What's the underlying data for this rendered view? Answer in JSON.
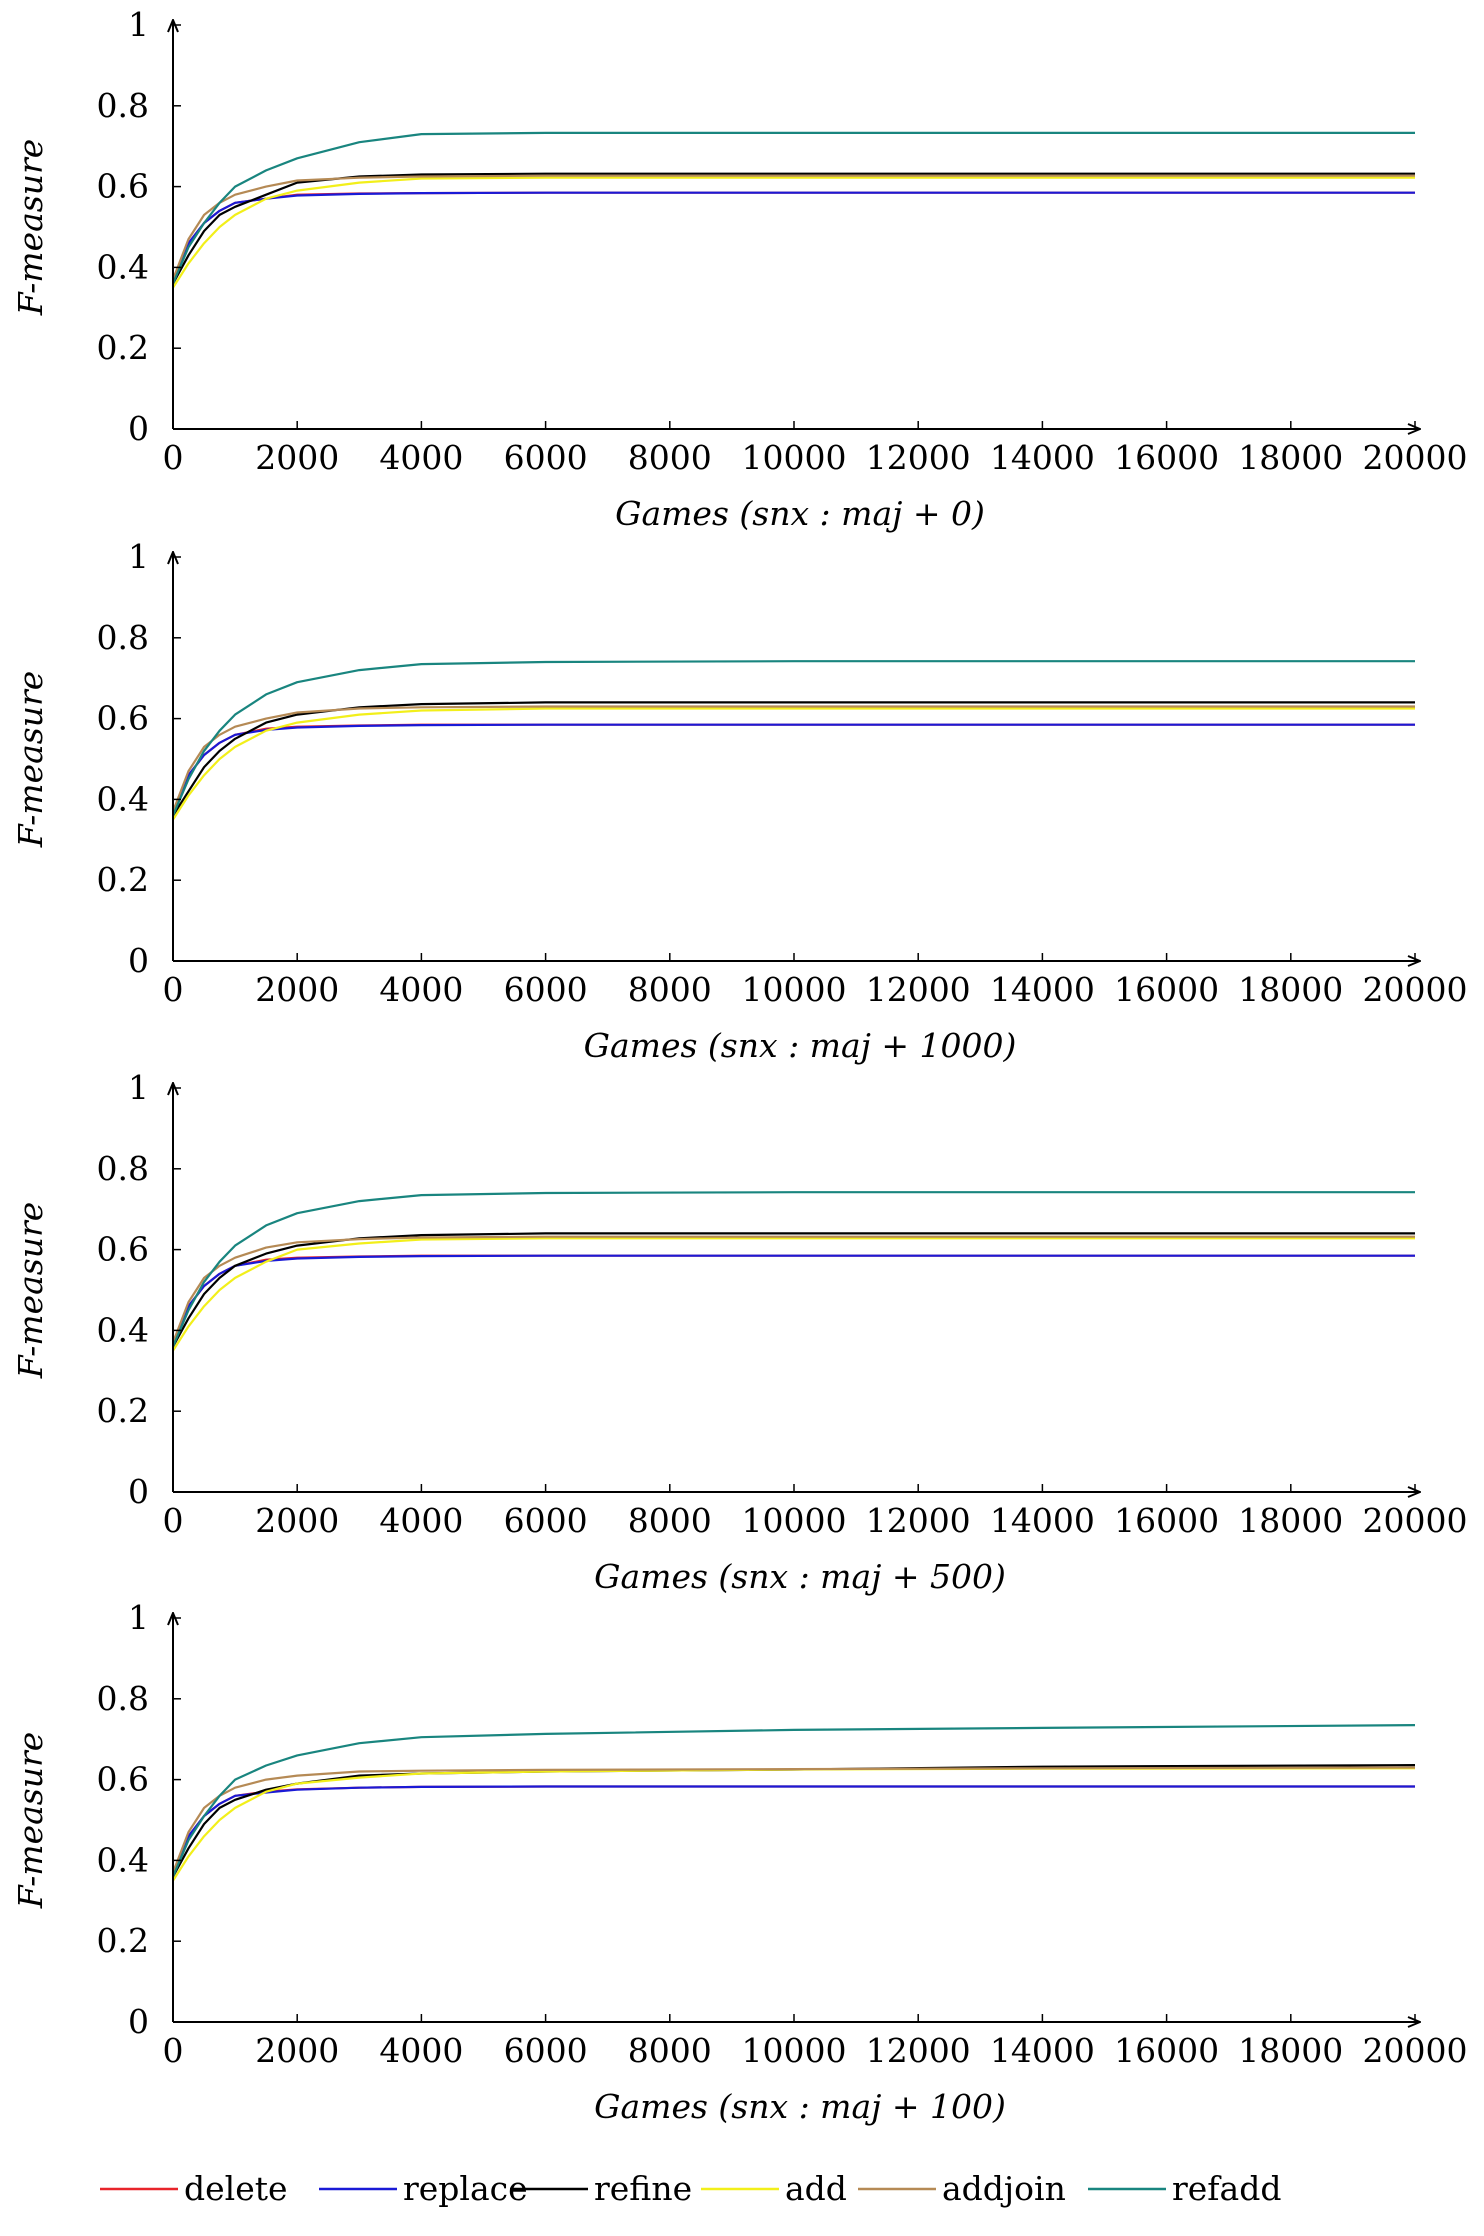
{
  "chart_data": [
    {
      "type": "line",
      "xlabel": "Games (snx : maj + 0)",
      "ylabel": "F-measure",
      "xlim": [
        0,
        20000
      ],
      "ylim": [
        0,
        1
      ],
      "xticks": [
        0,
        2000,
        4000,
        6000,
        8000,
        10000,
        12000,
        14000,
        16000,
        18000,
        20000
      ],
      "yticks": [
        0,
        0.2,
        0.4,
        0.6,
        0.8,
        1
      ],
      "ytick_labels": [
        "0",
        "0.2",
        "0.4",
        "0.6",
        "0.8",
        "1"
      ],
      "grid": false,
      "x": [
        0,
        250,
        500,
        750,
        1000,
        1500,
        2000,
        3000,
        4000,
        6000,
        10000,
        14000,
        20000
      ],
      "series": [
        {
          "name": "delete",
          "values": [
            0.37,
            0.46,
            0.51,
            0.54,
            0.56,
            0.57,
            0.58,
            0.583,
            0.584,
            0.585,
            0.585,
            0.585,
            0.585
          ]
        },
        {
          "name": "replace",
          "values": [
            0.37,
            0.46,
            0.51,
            0.54,
            0.56,
            0.57,
            0.578,
            0.582,
            0.584,
            0.585,
            0.585,
            0.585,
            0.585
          ]
        },
        {
          "name": "refine",
          "values": [
            0.36,
            0.43,
            0.49,
            0.53,
            0.55,
            0.58,
            0.61,
            0.625,
            0.63,
            0.632,
            0.632,
            0.632,
            0.632
          ]
        },
        {
          "name": "add",
          "values": [
            0.35,
            0.41,
            0.46,
            0.5,
            0.53,
            0.57,
            0.59,
            0.61,
            0.62,
            0.622,
            0.622,
            0.622,
            0.622
          ]
        },
        {
          "name": "addjoin",
          "values": [
            0.37,
            0.47,
            0.53,
            0.56,
            0.58,
            0.6,
            0.615,
            0.622,
            0.625,
            0.627,
            0.627,
            0.627,
            0.627
          ]
        },
        {
          "name": "refadd",
          "values": [
            0.36,
            0.45,
            0.51,
            0.56,
            0.6,
            0.64,
            0.67,
            0.71,
            0.73,
            0.733,
            0.733,
            0.733,
            0.733
          ]
        }
      ]
    },
    {
      "type": "line",
      "xlabel": "Games (snx : maj + 1000)",
      "ylabel": "F-measure",
      "xlim": [
        0,
        20000
      ],
      "ylim": [
        0,
        1
      ],
      "xticks": [
        0,
        2000,
        4000,
        6000,
        8000,
        10000,
        12000,
        14000,
        16000,
        18000,
        20000
      ],
      "yticks": [
        0,
        0.2,
        0.4,
        0.6,
        0.8,
        1
      ],
      "ytick_labels": [
        "0",
        "0.2",
        "0.4",
        "0.6",
        "0.8",
        "1"
      ],
      "grid": false,
      "x": [
        0,
        250,
        500,
        750,
        1000,
        1500,
        2000,
        3000,
        4000,
        6000,
        10000,
        14000,
        20000
      ],
      "series": [
        {
          "name": "delete",
          "values": [
            0.37,
            0.46,
            0.51,
            0.54,
            0.56,
            0.575,
            0.58,
            0.583,
            0.585,
            0.585,
            0.585,
            0.585,
            0.585
          ]
        },
        {
          "name": "replace",
          "values": [
            0.37,
            0.46,
            0.51,
            0.54,
            0.56,
            0.572,
            0.578,
            0.582,
            0.584,
            0.585,
            0.585,
            0.585,
            0.585
          ]
        },
        {
          "name": "refine",
          "values": [
            0.36,
            0.42,
            0.48,
            0.52,
            0.55,
            0.59,
            0.61,
            0.628,
            0.636,
            0.64,
            0.64,
            0.64,
            0.64
          ]
        },
        {
          "name": "add",
          "values": [
            0.35,
            0.41,
            0.46,
            0.5,
            0.53,
            0.57,
            0.59,
            0.61,
            0.62,
            0.625,
            0.625,
            0.625,
            0.625
          ]
        },
        {
          "name": "addjoin",
          "values": [
            0.37,
            0.47,
            0.53,
            0.56,
            0.58,
            0.6,
            0.615,
            0.625,
            0.628,
            0.63,
            0.63,
            0.63,
            0.63
          ]
        },
        {
          "name": "refadd",
          "values": [
            0.36,
            0.45,
            0.52,
            0.57,
            0.61,
            0.66,
            0.69,
            0.72,
            0.735,
            0.74,
            0.742,
            0.742,
            0.742
          ]
        }
      ]
    },
    {
      "type": "line",
      "xlabel": "Games (snx : maj + 500)",
      "ylabel": "F-measure",
      "xlim": [
        0,
        20000
      ],
      "ylim": [
        0,
        1
      ],
      "xticks": [
        0,
        2000,
        4000,
        6000,
        8000,
        10000,
        12000,
        14000,
        16000,
        18000,
        20000
      ],
      "yticks": [
        0,
        0.2,
        0.4,
        0.6,
        0.8,
        1
      ],
      "ytick_labels": [
        "0",
        "0.2",
        "0.4",
        "0.6",
        "0.8",
        "1"
      ],
      "grid": false,
      "x": [
        0,
        250,
        500,
        750,
        1000,
        1500,
        2000,
        3000,
        4000,
        6000,
        10000,
        14000,
        20000
      ],
      "series": [
        {
          "name": "delete",
          "values": [
            0.37,
            0.46,
            0.51,
            0.54,
            0.56,
            0.575,
            0.58,
            0.583,
            0.585,
            0.585,
            0.585,
            0.585,
            0.585
          ]
        },
        {
          "name": "replace",
          "values": [
            0.37,
            0.46,
            0.51,
            0.54,
            0.56,
            0.572,
            0.578,
            0.582,
            0.584,
            0.585,
            0.585,
            0.585,
            0.585
          ]
        },
        {
          "name": "refine",
          "values": [
            0.36,
            0.43,
            0.49,
            0.53,
            0.56,
            0.59,
            0.61,
            0.628,
            0.636,
            0.64,
            0.64,
            0.64,
            0.64
          ]
        },
        {
          "name": "add",
          "values": [
            0.35,
            0.41,
            0.46,
            0.5,
            0.53,
            0.57,
            0.6,
            0.615,
            0.625,
            0.628,
            0.628,
            0.628,
            0.628
          ]
        },
        {
          "name": "addjoin",
          "values": [
            0.37,
            0.47,
            0.53,
            0.56,
            0.58,
            0.605,
            0.618,
            0.626,
            0.63,
            0.632,
            0.632,
            0.632,
            0.632
          ]
        },
        {
          "name": "refadd",
          "values": [
            0.36,
            0.45,
            0.52,
            0.57,
            0.61,
            0.66,
            0.69,
            0.72,
            0.735,
            0.74,
            0.742,
            0.742,
            0.742
          ]
        }
      ]
    },
    {
      "type": "line",
      "xlabel": "Games (snx : maj + 100)",
      "ylabel": "F-measure",
      "xlim": [
        0,
        20000
      ],
      "ylim": [
        0,
        1
      ],
      "xticks": [
        0,
        2000,
        4000,
        6000,
        8000,
        10000,
        12000,
        14000,
        16000,
        18000,
        20000
      ],
      "yticks": [
        0,
        0.2,
        0.4,
        0.6,
        0.8,
        1
      ],
      "ytick_labels": [
        "0",
        "0.2",
        "0.4",
        "0.6",
        "0.8",
        "1"
      ],
      "grid": false,
      "x": [
        0,
        250,
        500,
        750,
        1000,
        1500,
        2000,
        3000,
        4000,
        6000,
        10000,
        14000,
        20000
      ],
      "series": [
        {
          "name": "delete",
          "values": [
            0.37,
            0.46,
            0.51,
            0.54,
            0.56,
            0.57,
            0.576,
            0.58,
            0.582,
            0.583,
            0.583,
            0.583,
            0.583
          ]
        },
        {
          "name": "replace",
          "values": [
            0.37,
            0.46,
            0.51,
            0.54,
            0.56,
            0.568,
            0.575,
            0.58,
            0.582,
            0.583,
            0.583,
            0.583,
            0.583
          ]
        },
        {
          "name": "refine",
          "values": [
            0.36,
            0.43,
            0.49,
            0.53,
            0.55,
            0.575,
            0.59,
            0.61,
            0.615,
            0.62,
            0.625,
            0.632,
            0.636
          ]
        },
        {
          "name": "add",
          "values": [
            0.35,
            0.41,
            0.46,
            0.5,
            0.53,
            0.57,
            0.59,
            0.605,
            0.615,
            0.62,
            0.625,
            0.627,
            0.628
          ]
        },
        {
          "name": "addjoin",
          "values": [
            0.37,
            0.47,
            0.53,
            0.56,
            0.58,
            0.6,
            0.61,
            0.62,
            0.622,
            0.624,
            0.626,
            0.628,
            0.63
          ]
        },
        {
          "name": "refadd",
          "values": [
            0.36,
            0.45,
            0.51,
            0.56,
            0.6,
            0.635,
            0.66,
            0.69,
            0.705,
            0.713,
            0.723,
            0.728,
            0.735
          ]
        }
      ]
    }
  ],
  "legend": {
    "placement": "bottom",
    "items": [
      {
        "name": "delete",
        "color": "#e8242a"
      },
      {
        "name": "replace",
        "color": "#1a1ad6"
      },
      {
        "name": "refine",
        "color": "#000000"
      },
      {
        "name": "add",
        "color": "#f2ef1a"
      },
      {
        "name": "addjoin",
        "color": "#b58a55"
      },
      {
        "name": "refadd",
        "color": "#19857f"
      }
    ]
  }
}
